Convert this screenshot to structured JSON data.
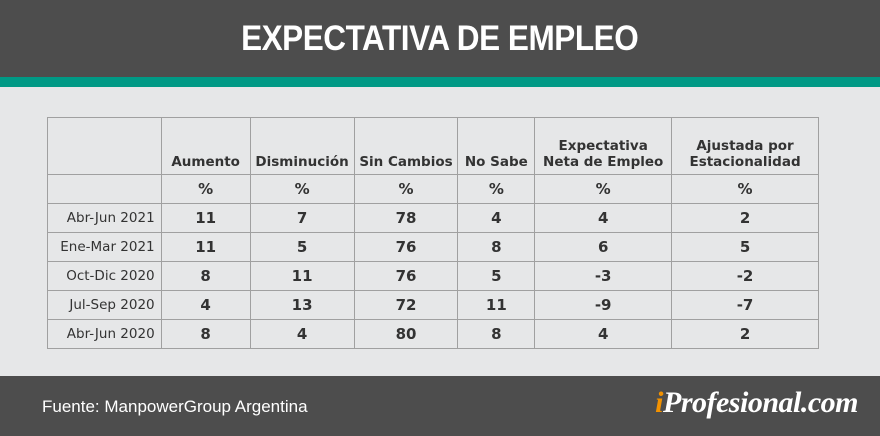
{
  "title": "EXPECTATIVA DE EMPLEO",
  "colors": {
    "header_bg": "#4d4d4d",
    "accent": "#009985",
    "logo_i": "#f39200"
  },
  "table": {
    "headers": [
      "",
      "Aumento",
      "Disminución",
      "Sin Cambios",
      "No Sabe",
      "Expectativa Neta de Empleo",
      "Ajustada por Estacionalidad"
    ],
    "units": [
      "",
      "%",
      "%",
      "%",
      "%",
      "%",
      "%"
    ],
    "rows": [
      [
        "Abr-Jun 2021",
        "11",
        "7",
        "78",
        "4",
        "4",
        "2"
      ],
      [
        "Ene-Mar 2021",
        "11",
        "5",
        "76",
        "8",
        "6",
        "5"
      ],
      [
        "Oct-Dic 2020",
        "8",
        "11",
        "76",
        "5",
        "-3",
        "-2"
      ],
      [
        "Jul-Sep 2020",
        "4",
        "13",
        "72",
        "11",
        "-9",
        "-7"
      ],
      [
        "Abr-Jun 2020",
        "8",
        "4",
        "80",
        "8",
        "4",
        "2"
      ]
    ]
  },
  "footer": {
    "source": "Fuente: ManpowerGroup Argentina",
    "logo_i": "i",
    "logo_rest": "Profesional.com"
  }
}
